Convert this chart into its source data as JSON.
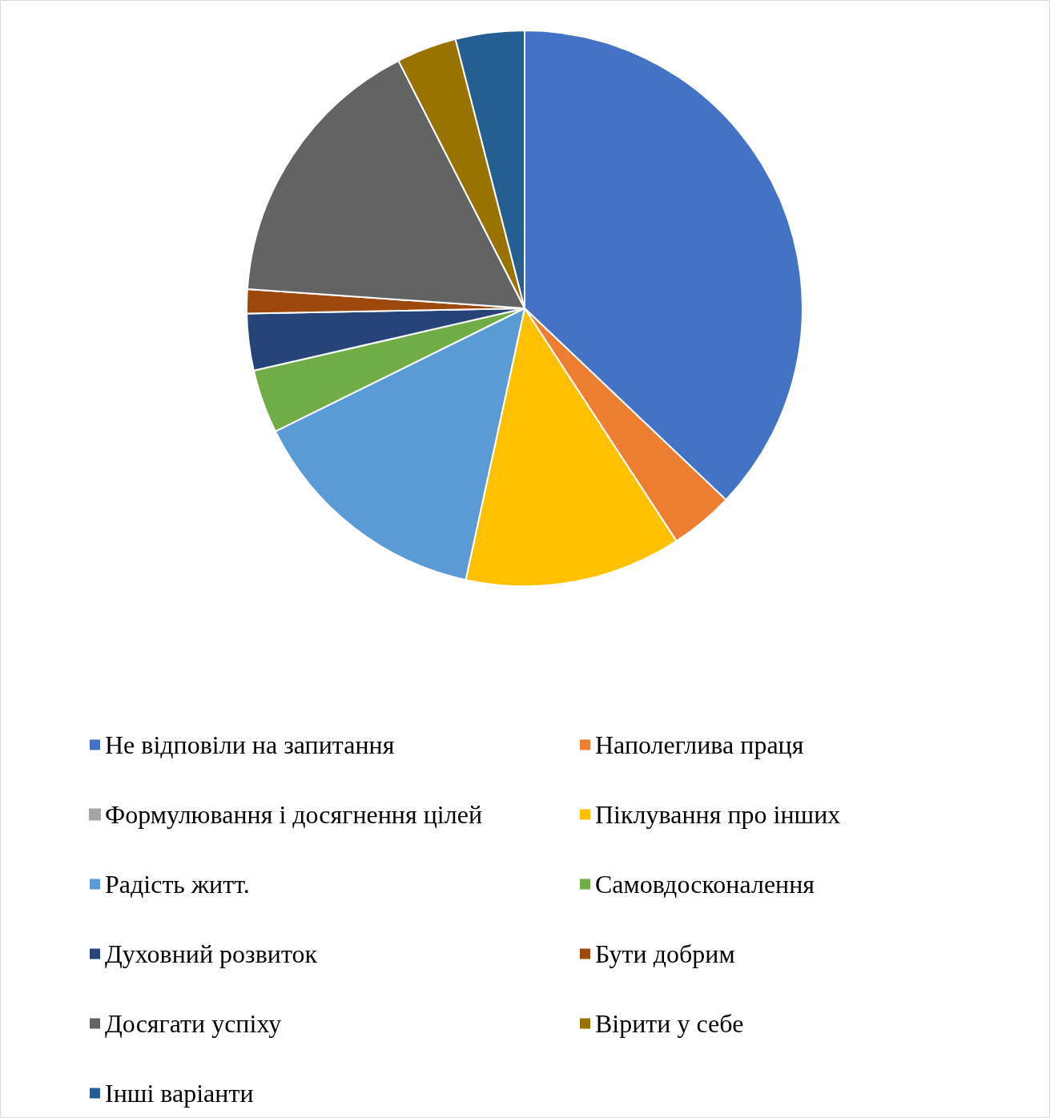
{
  "chart_data": {
    "type": "pie",
    "categories": [
      "Не відповіли на запитання",
      "Наполеглива праця",
      "Формулювання і досягнення цілей",
      "Піклування про інших",
      "Радість житт.",
      "Самовдосконалення",
      "Духовний розвиток",
      "Бути добрим",
      "Досягати успіху",
      "Вірити у себе",
      "Інші варіанти"
    ],
    "values": [
      37.1,
      3.7,
      0,
      12.6,
      14.3,
      3.7,
      3.3,
      1.4,
      16.4,
      3.5,
      4.0
    ],
    "colors": [
      "#4472c4",
      "#ed7d31",
      "#a5a5a5",
      "#ffc000",
      "#5b9bd5",
      "#70ad47",
      "#264478",
      "#9e480e",
      "#636363",
      "#997300",
      "#255e91"
    ],
    "legend": "bottom"
  }
}
